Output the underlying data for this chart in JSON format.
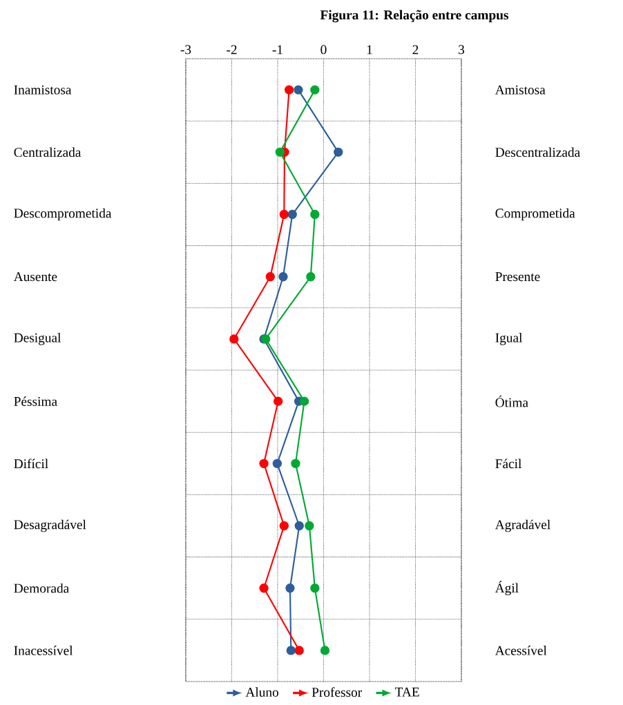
{
  "chart_data": {
    "type": "line",
    "orientation": "horizontal",
    "title": "Figura 11: Relação entre campus",
    "categories": [
      "Inamistosa",
      "Centralizada",
      "Descomprometida",
      "Ausente",
      "Desigual",
      "Péssima",
      "Difícil",
      "Desagradável",
      "Demorada",
      "Inacessível"
    ],
    "y2_categories": [
      "Amistosa",
      "Descentralizada",
      "Comprometida",
      "Presente",
      "Igual",
      "Ótima",
      "Fácil",
      "Agradável",
      "Ágil",
      "Acessível"
    ],
    "series": [
      {
        "name": "Aluno",
        "color": "#2e5e9a",
        "values": [
          -0.55,
          0.32,
          -0.68,
          -0.88,
          -1.3,
          -0.54,
          -1.01,
          -0.53,
          -0.73,
          -0.71
        ]
      },
      {
        "name": "Professor",
        "color": "#ff0000",
        "values": [
          -0.75,
          -0.85,
          -0.86,
          -1.16,
          -1.95,
          -0.99,
          -1.3,
          -0.86,
          -1.3,
          -0.53
        ]
      },
      {
        "name": "TAE",
        "color": "#00a933",
        "values": [
          -0.19,
          -0.95,
          -0.19,
          -0.28,
          -1.26,
          -0.42,
          -0.61,
          -0.31,
          -0.19,
          0.03
        ]
      }
    ],
    "xlim": [
      -3,
      3
    ],
    "xticks": [
      -3,
      -2,
      -1,
      0,
      1,
      2,
      3
    ],
    "grid": true,
    "legend": "bottom",
    "marker": "circle",
    "line_style": "solid"
  }
}
